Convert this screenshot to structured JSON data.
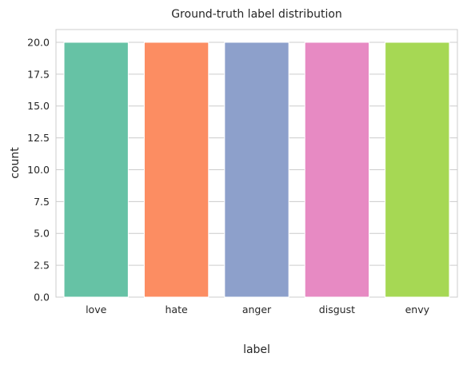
{
  "chart_data": {
    "type": "bar",
    "title": "Ground-truth label distribution",
    "xlabel": "label",
    "ylabel": "count",
    "categories": [
      "love",
      "hate",
      "anger",
      "disgust",
      "envy"
    ],
    "values": [
      20,
      20,
      20,
      20,
      20
    ],
    "colors": [
      "#66c2a5",
      "#fc8d62",
      "#8da0cb",
      "#e78ac3",
      "#a6d854"
    ],
    "ylim": [
      0,
      21
    ],
    "yticks": [
      "0.0",
      "2.5",
      "5.0",
      "7.5",
      "10.0",
      "12.5",
      "15.0",
      "17.5",
      "20.0"
    ],
    "grid": true,
    "legend": "none"
  }
}
